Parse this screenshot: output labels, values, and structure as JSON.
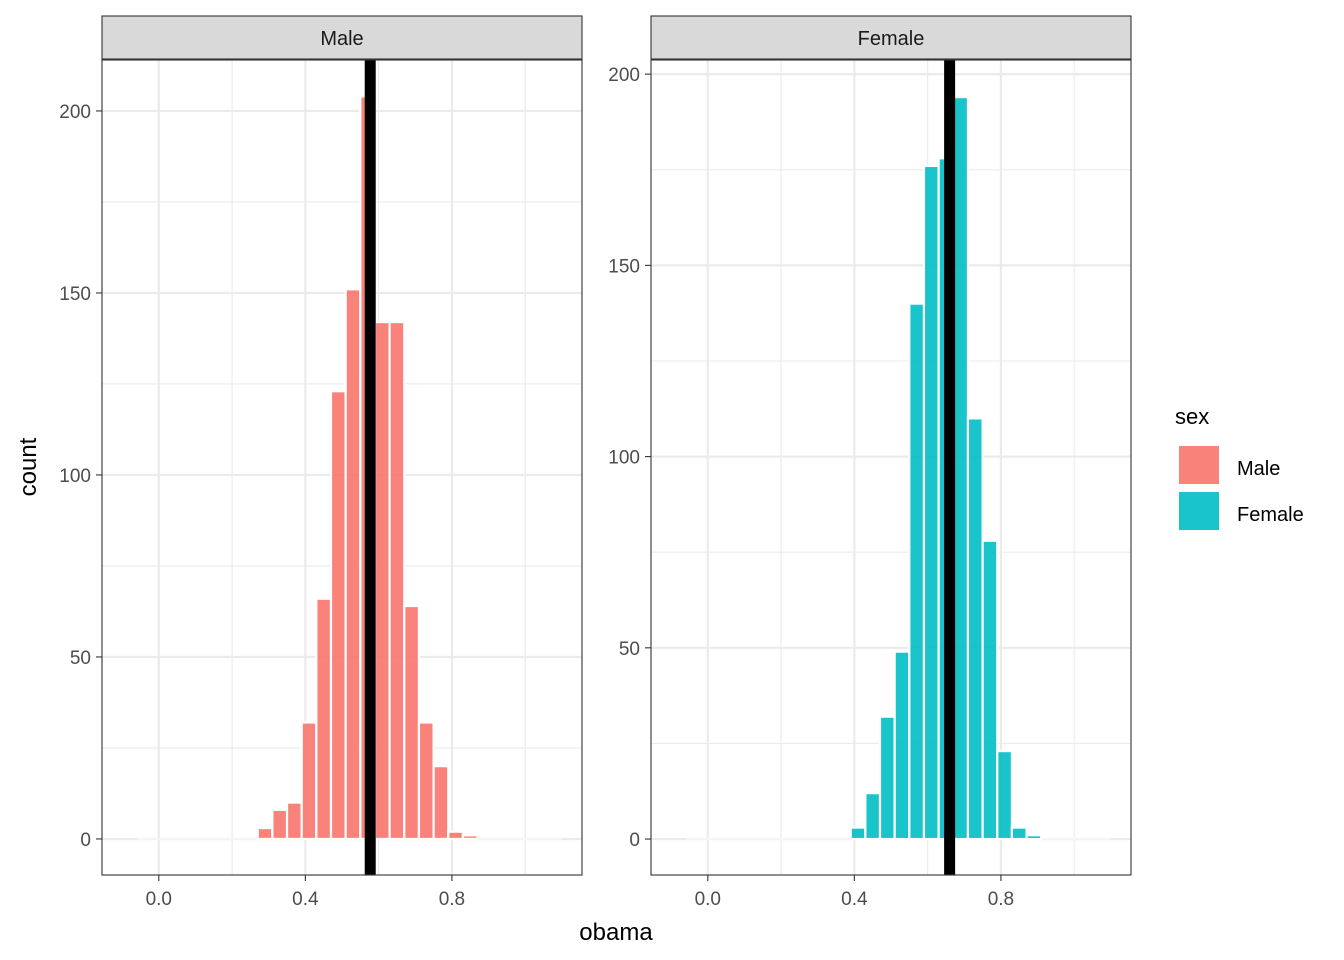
{
  "chart_data": {
    "type": "bar",
    "xlabel": "obama",
    "ylabel": "count",
    "legend": {
      "title": "sex",
      "placement": "right",
      "entries": [
        {
          "label": "Male",
          "color": "#F8766D"
        },
        {
          "label": "Female",
          "color": "#00BFC4"
        }
      ]
    },
    "xticks": [
      "0.0",
      "0.4",
      "0.8"
    ],
    "xtick_values": [
      0,
      0.4,
      0.8
    ],
    "xlim": [
      -0.155,
      1.155
    ],
    "binwidth": 0.04,
    "panels": [
      {
        "strip": "Male",
        "color": "#F8766D",
        "ylim": [
          -9.9,
          214
        ],
        "yticks": [
          "0",
          "50",
          "100",
          "150",
          "200"
        ],
        "ytick_values": [
          0,
          50,
          100,
          150,
          200
        ],
        "x": [
          0.29,
          0.33,
          0.37,
          0.41,
          0.45,
          0.49,
          0.53,
          0.57,
          0.61,
          0.65,
          0.69,
          0.73,
          0.77,
          0.81,
          0.85
        ],
        "values": [
          3,
          8,
          10,
          32,
          66,
          123,
          151,
          204,
          142,
          142,
          64,
          32,
          20,
          2,
          1
        ],
        "vline": 0.577
      },
      {
        "strip": "Female",
        "color": "#00BFC4",
        "ylim": [
          -9.4,
          203.7
        ],
        "yticks": [
          "0",
          "50",
          "100",
          "150",
          "200"
        ],
        "ytick_values": [
          0,
          50,
          100,
          150,
          200
        ],
        "x": [
          0.41,
          0.45,
          0.49,
          0.53,
          0.57,
          0.61,
          0.65,
          0.69,
          0.73,
          0.77,
          0.81,
          0.85,
          0.89
        ],
        "values": [
          3,
          12,
          32,
          49,
          140,
          176,
          178,
          194,
          110,
          78,
          23,
          3,
          1
        ],
        "vline": 0.66
      }
    ]
  }
}
